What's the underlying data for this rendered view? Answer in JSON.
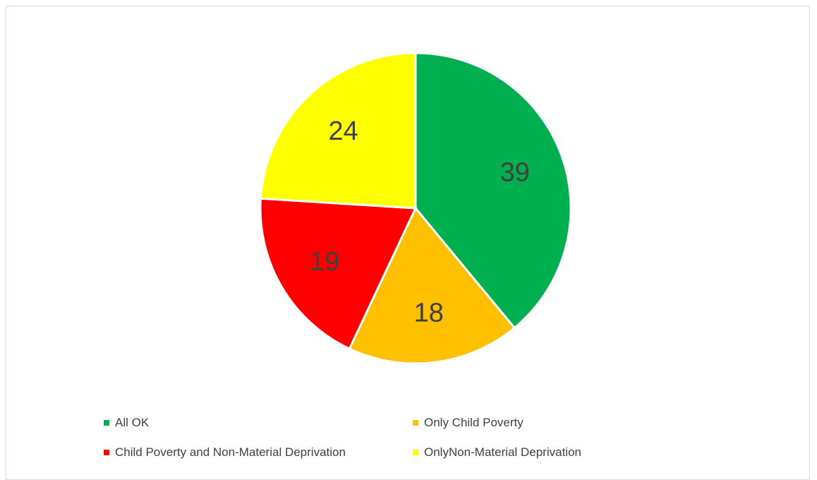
{
  "chart_data": {
    "type": "pie",
    "title": "",
    "slices": [
      {
        "label": "All OK",
        "value": 39,
        "color": "#00b050"
      },
      {
        "label": "Only Child Poverty",
        "value": 18,
        "color": "#ffc000"
      },
      {
        "label": "Child Poverty and Non-Material Deprivation",
        "value": 19,
        "color": "#ff0000"
      },
      {
        "label": "OnlyNon-Material Deprivation",
        "value": 24,
        "color": "#ffff00"
      }
    ],
    "data_labels": [
      "39",
      "18",
      "19",
      "24"
    ],
    "legend_position": "bottom"
  }
}
